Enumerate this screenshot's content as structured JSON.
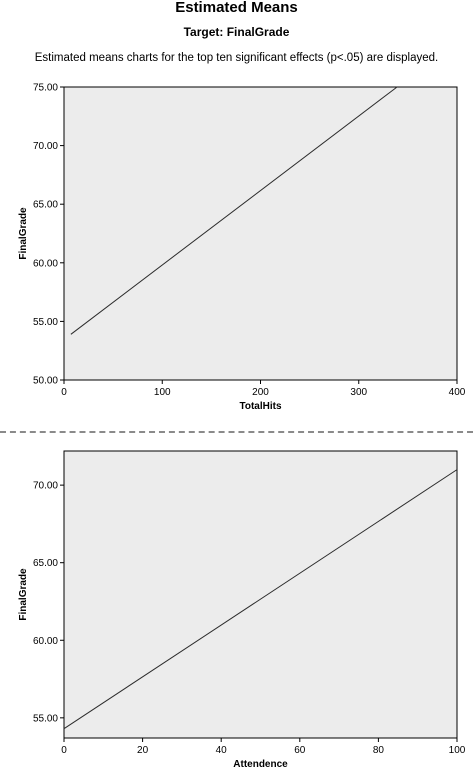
{
  "header": {
    "title": "Estimated Means",
    "target": "Target: FinalGrade",
    "description": "Estimated means charts for the top ten significant effects (p<.05) are displayed."
  },
  "colors": {
    "plot_background": "#ececec",
    "line": "#2b2b2b",
    "divider": "#8a8a8a"
  },
  "chart_data": [
    {
      "type": "line",
      "xlabel": "TotalHits",
      "ylabel": "FinalGrade",
      "xlim": [
        0,
        400
      ],
      "ylim": [
        50,
        75
      ],
      "x_ticks": [
        0,
        100,
        200,
        300,
        400
      ],
      "x_tick_labels": [
        "0",
        "100",
        "200",
        "300",
        "400"
      ],
      "y_ticks": [
        50,
        55,
        60,
        65,
        70,
        75
      ],
      "y_tick_labels": [
        "50.00",
        "55.00",
        "60.00",
        "65.00",
        "70.00",
        "75.00"
      ],
      "series": [
        {
          "x": [
            7,
            339
          ],
          "y": [
            53.9,
            75.0
          ]
        }
      ],
      "grid": false
    },
    {
      "type": "line",
      "xlabel": "Attendence",
      "ylabel": "FinalGrade",
      "xlim": [
        0,
        100
      ],
      "ylim": [
        53.7,
        72.2
      ],
      "x_ticks": [
        0,
        20,
        40,
        60,
        80,
        100
      ],
      "x_tick_labels": [
        "0",
        "20",
        "40",
        "60",
        "80",
        "100"
      ],
      "y_ticks": [
        55,
        60,
        65,
        70
      ],
      "y_tick_labels": [
        "55.00",
        "60.00",
        "65.00",
        "70.00"
      ],
      "series": [
        {
          "x": [
            0,
            100
          ],
          "y": [
            54.3,
            71.0
          ]
        }
      ],
      "grid": false
    }
  ]
}
